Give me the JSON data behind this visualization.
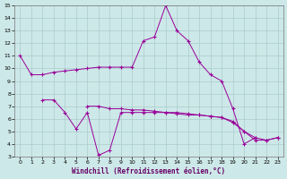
{
  "x": [
    0,
    1,
    2,
    3,
    4,
    5,
    6,
    7,
    8,
    9,
    10,
    11,
    12,
    13,
    14,
    15,
    16,
    17,
    18,
    19,
    20,
    21,
    22,
    23
  ],
  "line1": [
    11,
    9.5,
    9.5,
    9.7,
    9.8,
    9.9,
    10.0,
    10.1,
    10.1,
    10.1,
    10.1,
    12.2,
    12.5,
    15.0,
    13.0,
    12.2,
    10.5,
    9.5,
    9.0,
    6.8,
    4.0,
    4.5,
    null,
    null
  ],
  "line2": [
    null,
    null,
    7.5,
    7.5,
    6.5,
    5.2,
    6.5,
    3.1,
    3.5,
    6.5,
    6.5,
    6.5,
    6.5,
    6.5,
    6.4,
    6.3,
    6.3,
    6.2,
    6.1,
    5.8,
    5.0,
    4.5,
    4.3,
    4.5
  ],
  "line3": [
    null,
    null,
    null,
    null,
    null,
    null,
    7.0,
    7.0,
    6.8,
    6.8,
    6.7,
    6.7,
    6.6,
    6.5,
    6.5,
    6.4,
    6.3,
    6.2,
    6.1,
    5.7,
    5.0,
    4.3,
    4.3,
    4.5
  ],
  "color": "#990099",
  "bg_color": "#cde8e8",
  "grid_color": "#aacccc",
  "xlabel": "Windchill (Refroidissement éolien,°C)",
  "xlim": [
    0,
    23
  ],
  "ylim": [
    3,
    15
  ],
  "yticks": [
    3,
    4,
    5,
    6,
    7,
    8,
    9,
    10,
    11,
    12,
    13,
    14,
    15
  ],
  "xticks": [
    0,
    1,
    2,
    3,
    4,
    5,
    6,
    7,
    8,
    9,
    10,
    11,
    12,
    13,
    14,
    15,
    16,
    17,
    18,
    19,
    20,
    21,
    22,
    23
  ]
}
